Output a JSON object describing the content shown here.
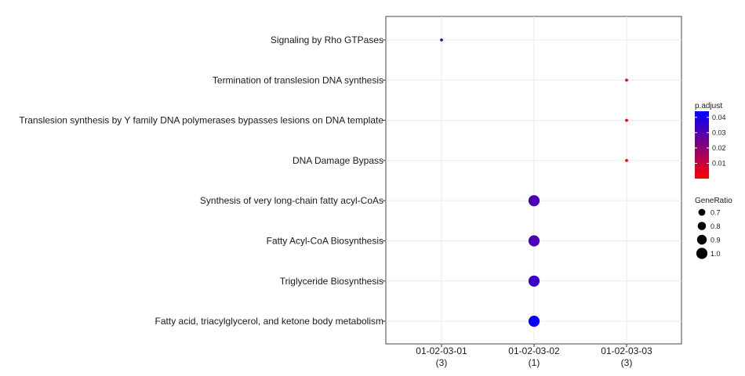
{
  "chart_data": {
    "type": "scatter",
    "x_categories": [
      {
        "id": "01-02-03-01",
        "count": "(3)"
      },
      {
        "id": "01-02-03-02",
        "count": "(1)"
      },
      {
        "id": "01-02-03-03",
        "count": "(3)"
      }
    ],
    "y_categories": [
      "Signaling by Rho GTPases",
      "Termination of translesion DNA synthesis",
      "Translesion synthesis by Y family DNA polymerases bypasses lesions on DNA template",
      "DNA Damage Bypass",
      "Synthesis of very long-chain fatty acyl-CoAs",
      "Fatty Acyl-CoA Biosynthesis",
      "Triglyceride Biosynthesis",
      "Fatty acid, triacylglycerol, and ketone body metabolism"
    ],
    "points": [
      {
        "x": "01-02-03-01",
        "y": "Signaling by Rho GTPases",
        "gene_ratio": 0.33,
        "p_adjust": 0.033
      },
      {
        "x": "01-02-03-03",
        "y": "Termination of translesion DNA synthesis",
        "gene_ratio": 0.33,
        "p_adjust": 0.001
      },
      {
        "x": "01-02-03-03",
        "y": "Translesion synthesis by Y family DNA polymerases bypasses lesions on DNA template",
        "gene_ratio": 0.33,
        "p_adjust": 0.001
      },
      {
        "x": "01-02-03-03",
        "y": "DNA Damage Bypass",
        "gene_ratio": 0.33,
        "p_adjust": 0.001
      },
      {
        "x": "01-02-03-02",
        "y": "Synthesis of very long-chain fatty acyl-CoAs",
        "gene_ratio": 1.0,
        "p_adjust": 0.031
      },
      {
        "x": "01-02-03-02",
        "y": "Fatty Acyl-CoA Biosynthesis",
        "gene_ratio": 1.0,
        "p_adjust": 0.031
      },
      {
        "x": "01-02-03-02",
        "y": "Triglyceride Biosynthesis",
        "gene_ratio": 1.0,
        "p_adjust": 0.034
      },
      {
        "x": "01-02-03-02",
        "y": "Fatty acid, triacylglycerol, and ketone body metabolism",
        "gene_ratio": 1.0,
        "p_adjust": 0.043
      }
    ],
    "color_legend": {
      "title": "p.adjust",
      "ticks": [
        "0.04",
        "0.03",
        "0.02",
        "0.01"
      ],
      "tick_values": [
        0.04,
        0.03,
        0.02,
        0.01
      ],
      "range": [
        0.0,
        0.044
      ],
      "low_color": "#ff0000",
      "high_color": "#0000ff"
    },
    "size_legend": {
      "title": "GeneRatio",
      "labels": [
        "0.7",
        "0.8",
        "0.9",
        "1.0"
      ],
      "values": [
        0.7,
        0.8,
        0.9,
        1.0
      ]
    },
    "grid": true,
    "legend_position": "right"
  }
}
